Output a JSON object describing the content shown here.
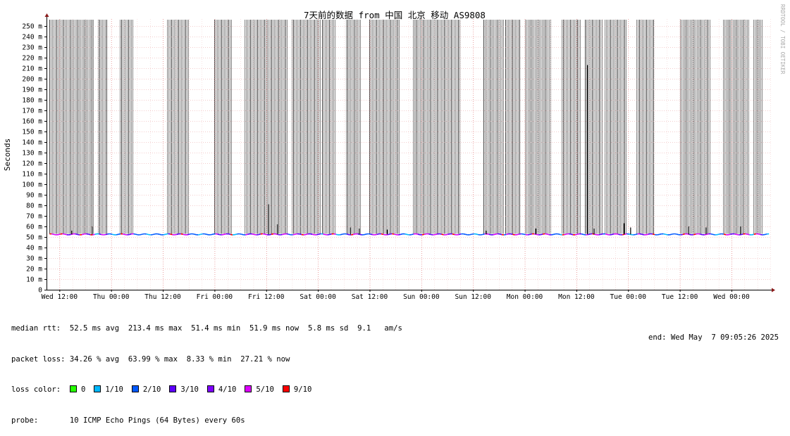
{
  "chart_data": {
    "type": "line",
    "title": "7天前的数据 from 中国 北京 移动 AS9808",
    "ylabel": "Seconds",
    "side_label": "RRDTOOL / TOBI OETIKER",
    "ylim": [
      0,
      250
    ],
    "y_ticks": [
      {
        "v": 0,
        "label": "0"
      },
      {
        "v": 10,
        "label": "10 m"
      },
      {
        "v": 20,
        "label": "20 m"
      },
      {
        "v": 30,
        "label": "30 m"
      },
      {
        "v": 40,
        "label": "40 m"
      },
      {
        "v": 50,
        "label": "50 m"
      },
      {
        "v": 60,
        "label": "60 m"
      },
      {
        "v": 70,
        "label": "70 m"
      },
      {
        "v": 80,
        "label": "80 m"
      },
      {
        "v": 90,
        "label": "90 m"
      },
      {
        "v": 100,
        "label": "100 m"
      },
      {
        "v": 110,
        "label": "110 m"
      },
      {
        "v": 120,
        "label": "120 m"
      },
      {
        "v": 130,
        "label": "130 m"
      },
      {
        "v": 140,
        "label": "140 m"
      },
      {
        "v": 150,
        "label": "150 m"
      },
      {
        "v": 160,
        "label": "160 m"
      },
      {
        "v": 170,
        "label": "170 m"
      },
      {
        "v": 180,
        "label": "180 m"
      },
      {
        "v": 190,
        "label": "190 m"
      },
      {
        "v": 200,
        "label": "200 m"
      },
      {
        "v": 210,
        "label": "210 m"
      },
      {
        "v": 220,
        "label": "220 m"
      },
      {
        "v": 230,
        "label": "230 m"
      },
      {
        "v": 240,
        "label": "240 m"
      },
      {
        "v": 250,
        "label": "250 m"
      }
    ],
    "x_range_hours": [
      -3,
      165
    ],
    "x_ticks": [
      {
        "h": 0,
        "label": "Wed 12:00"
      },
      {
        "h": 12,
        "label": "Thu 00:00"
      },
      {
        "h": 24,
        "label": "Thu 12:00"
      },
      {
        "h": 36,
        "label": "Fri 00:00"
      },
      {
        "h": 48,
        "label": "Fri 12:00"
      },
      {
        "h": 60,
        "label": "Sat 00:00"
      },
      {
        "h": 72,
        "label": "Sat 12:00"
      },
      {
        "h": 84,
        "label": "Sun 00:00"
      },
      {
        "h": 96,
        "label": "Sun 12:00"
      },
      {
        "h": 108,
        "label": "Mon 00:00"
      },
      {
        "h": 120,
        "label": "Mon 12:00"
      },
      {
        "h": 132,
        "label": "Tue 00:00"
      },
      {
        "h": 144,
        "label": "Tue 12:00"
      },
      {
        "h": 156,
        "label": "Wed 00:00"
      }
    ],
    "median_rtt_ms": 52.5,
    "spikes": [
      {
        "h": 2.8,
        "v": 56
      },
      {
        "h": 7.5,
        "v": 60
      },
      {
        "h": 48.5,
        "v": 81
      },
      {
        "h": 50.5,
        "v": 62
      },
      {
        "h": 67.5,
        "v": 59
      },
      {
        "h": 69.5,
        "v": 58
      },
      {
        "h": 76,
        "v": 57
      },
      {
        "h": 99,
        "v": 56
      },
      {
        "h": 110.5,
        "v": 58
      },
      {
        "h": 122.5,
        "v": 213
      },
      {
        "h": 124,
        "v": 58
      },
      {
        "h": 131,
        "v": 63
      },
      {
        "h": 132.5,
        "v": 59
      },
      {
        "h": 146,
        "v": 60
      },
      {
        "h": 150,
        "v": 59
      },
      {
        "h": 158,
        "v": 60
      }
    ],
    "loss_regions": [
      [
        -2.3,
        8
      ],
      [
        9,
        11
      ],
      [
        14,
        17
      ],
      [
        25,
        30
      ],
      [
        36,
        40
      ],
      [
        43,
        53
      ],
      [
        54,
        60.5
      ],
      [
        61,
        64
      ],
      [
        66.5,
        70
      ],
      [
        72,
        79
      ],
      [
        82,
        93
      ],
      [
        98.5,
        103
      ],
      [
        103.5,
        107
      ],
      [
        108,
        114
      ],
      [
        116.5,
        121
      ],
      [
        122,
        126
      ],
      [
        126.5,
        131.5
      ],
      [
        134,
        138
      ],
      [
        144,
        151
      ],
      [
        154,
        160
      ],
      [
        161,
        163
      ]
    ],
    "loss_colors": [
      {
        "label": "0",
        "color": "#26ff00"
      },
      {
        "label": "1/10",
        "color": "#00b8ff"
      },
      {
        "label": "2/10",
        "color": "#0059ff"
      },
      {
        "label": "3/10",
        "color": "#5e00ff"
      },
      {
        "label": "4/10",
        "color": "#7e00ff"
      },
      {
        "label": "5/10",
        "color": "#dd00ff"
      },
      {
        "label": "9/10",
        "color": "#ff0000"
      }
    ]
  },
  "stats": {
    "median_rtt": "median rtt:  52.5 ms avg  213.4 ms max  51.4 ms min  51.9 ms now  5.8 ms sd  9.1   am/s",
    "packet_loss": "packet loss: 34.26 % avg  63.99 % max  8.33 % min  27.21 % now",
    "loss_color_label": "loss color:",
    "probe": "probe:       10 ICMP Echo Pings (64 Bytes) every 60s",
    "end": "end: Wed May  7 09:05:26 2025"
  }
}
